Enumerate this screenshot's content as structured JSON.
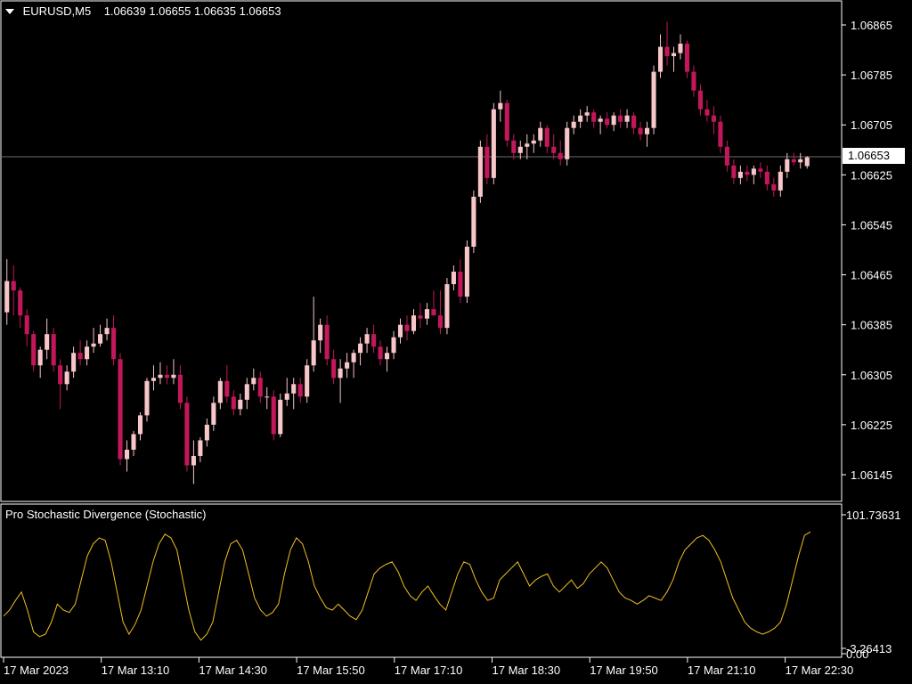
{
  "header": {
    "symbol": "EURUSD,M5",
    "open": "1.06639",
    "high": "1.06655",
    "low": "1.06635",
    "close": "1.06653"
  },
  "indicator": {
    "title": "Pro Stochastic Divergence (Stochastic)",
    "max_label": "101.73631",
    "zero_label": "0.00",
    "min_label": "-3.26413"
  },
  "price_axis": {
    "ticks": [
      "1.06865",
      "1.06785",
      "1.06705",
      "1.06625",
      "1.06545",
      "1.06465",
      "1.06385",
      "1.06305",
      "1.06225",
      "1.06145"
    ],
    "last_price": "1.06653"
  },
  "time_axis": {
    "ticks": [
      "17 Mar 2023",
      "17 Mar 13:10",
      "17 Mar 14:30",
      "17 Mar 15:50",
      "17 Mar 17:10",
      "17 Mar 18:30",
      "17 Mar 19:50",
      "17 Mar 21:10",
      "17 Mar 22:30"
    ]
  },
  "colors": {
    "background": "#000000",
    "bull_candle": "#f7c6c8",
    "bear_candle": "#c2185b",
    "indicator_line": "#f0c020",
    "axis": "#ffffff",
    "price_line": "#8a8a8a"
  },
  "chart_data": [
    {
      "type": "candlestick",
      "title": "EURUSD,M5",
      "x_range": [
        "17 Mar 2023",
        "17 Mar 22:30"
      ],
      "ylim": [
        1.06125,
        1.06885
      ],
      "ohlc": [
        [
          1.06405,
          1.0649,
          1.06385,
          1.06455
        ],
        [
          1.06455,
          1.0648,
          1.064,
          1.0644
        ],
        [
          1.0644,
          1.06445,
          1.0638,
          1.064
        ],
        [
          1.064,
          1.0641,
          1.0635,
          1.0637
        ],
        [
          1.0637,
          1.06375,
          1.0631,
          1.0632
        ],
        [
          1.0632,
          1.0635,
          1.063,
          1.06345
        ],
        [
          1.06345,
          1.06395,
          1.0633,
          1.0637
        ],
        [
          1.0637,
          1.0638,
          1.0631,
          1.0632
        ],
        [
          1.0632,
          1.0633,
          1.0625,
          1.0629
        ],
        [
          1.0629,
          1.0632,
          1.0628,
          1.0631
        ],
        [
          1.0631,
          1.0635,
          1.063,
          1.0634
        ],
        [
          1.0634,
          1.0636,
          1.0632,
          1.0633
        ],
        [
          1.0633,
          1.0636,
          1.0632,
          1.0635
        ],
        [
          1.0635,
          1.0638,
          1.0634,
          1.06355
        ],
        [
          1.06355,
          1.06385,
          1.0635,
          1.0637
        ],
        [
          1.0637,
          1.06395,
          1.0636,
          1.0638
        ],
        [
          1.0638,
          1.064,
          1.0632,
          1.0633
        ],
        [
          1.0633,
          1.0634,
          1.0616,
          1.0617
        ],
        [
          1.0617,
          1.062,
          1.0615,
          1.06185
        ],
        [
          1.06185,
          1.06215,
          1.06175,
          1.0621
        ],
        [
          1.0621,
          1.06245,
          1.062,
          1.0624
        ],
        [
          1.0624,
          1.063,
          1.0623,
          1.06295
        ],
        [
          1.06295,
          1.0632,
          1.0628,
          1.063
        ],
        [
          1.063,
          1.06325,
          1.0629,
          1.06305
        ],
        [
          1.06305,
          1.0632,
          1.0629,
          1.063
        ],
        [
          1.063,
          1.0633,
          1.0629,
          1.06305
        ],
        [
          1.06305,
          1.0632,
          1.0625,
          1.0626
        ],
        [
          1.0626,
          1.0627,
          1.0615,
          1.0616
        ],
        [
          1.0616,
          1.062,
          1.0613,
          1.06175
        ],
        [
          1.06175,
          1.06205,
          1.06165,
          1.062
        ],
        [
          1.062,
          1.06235,
          1.0619,
          1.06225
        ],
        [
          1.06225,
          1.0627,
          1.06215,
          1.0626
        ],
        [
          1.0626,
          1.063,
          1.0625,
          1.06295
        ],
        [
          1.06295,
          1.0632,
          1.0626,
          1.0627
        ],
        [
          1.0627,
          1.0628,
          1.0624,
          1.0625
        ],
        [
          1.0625,
          1.06275,
          1.0624,
          1.06265
        ],
        [
          1.06265,
          1.063,
          1.0625,
          1.0629
        ],
        [
          1.0629,
          1.06315,
          1.0628,
          1.063
        ],
        [
          1.063,
          1.0631,
          1.0626,
          1.0627
        ],
        [
          1.0627,
          1.06285,
          1.0625,
          1.0627
        ],
        [
          1.0627,
          1.0628,
          1.062,
          1.0621
        ],
        [
          1.0621,
          1.06275,
          1.06205,
          1.06265
        ],
        [
          1.06265,
          1.063,
          1.06255,
          1.06275
        ],
        [
          1.06275,
          1.063,
          1.0625,
          1.0629
        ],
        [
          1.0629,
          1.063,
          1.0626,
          1.0627
        ],
        [
          1.0627,
          1.0633,
          1.0626,
          1.0632
        ],
        [
          1.0632,
          1.0643,
          1.0631,
          1.0636
        ],
        [
          1.0636,
          1.06395,
          1.0634,
          1.06385
        ],
        [
          1.06385,
          1.064,
          1.0632,
          1.0633
        ],
        [
          1.0633,
          1.06345,
          1.0629,
          1.063
        ],
        [
          1.063,
          1.0633,
          1.0626,
          1.06315
        ],
        [
          1.06315,
          1.0634,
          1.063,
          1.06325
        ],
        [
          1.06325,
          1.06345,
          1.063,
          1.0634
        ],
        [
          1.0634,
          1.06365,
          1.0632,
          1.06355
        ],
        [
          1.06355,
          1.0638,
          1.0634,
          1.0637
        ],
        [
          1.0637,
          1.06385,
          1.0634,
          1.0635
        ],
        [
          1.0635,
          1.0636,
          1.0632,
          1.0633
        ],
        [
          1.0633,
          1.0635,
          1.0631,
          1.0634
        ],
        [
          1.0634,
          1.06375,
          1.0633,
          1.06365
        ],
        [
          1.06365,
          1.06395,
          1.06355,
          1.06385
        ],
        [
          1.06385,
          1.064,
          1.0636,
          1.06375
        ],
        [
          1.06375,
          1.0641,
          1.0637,
          1.064
        ],
        [
          1.064,
          1.0642,
          1.0638,
          1.06395
        ],
        [
          1.06395,
          1.0642,
          1.06385,
          1.0641
        ],
        [
          1.0641,
          1.0644,
          1.064,
          1.064
        ],
        [
          1.064,
          1.0644,
          1.0637,
          1.0638
        ],
        [
          1.0638,
          1.0646,
          1.0637,
          1.0645
        ],
        [
          1.0645,
          1.0648,
          1.0644,
          1.0647
        ],
        [
          1.0647,
          1.0649,
          1.0642,
          1.0643
        ],
        [
          1.0643,
          1.0652,
          1.0642,
          1.0651
        ],
        [
          1.0651,
          1.066,
          1.065,
          1.0659
        ],
        [
          1.0659,
          1.0668,
          1.0658,
          1.0667
        ],
        [
          1.0667,
          1.0669,
          1.0661,
          1.0662
        ],
        [
          1.0662,
          1.0674,
          1.0661,
          1.0673
        ],
        [
          1.0673,
          1.0676,
          1.0671,
          1.0674
        ],
        [
          1.0674,
          1.06745,
          1.0667,
          1.0668
        ],
        [
          1.0668,
          1.0669,
          1.0665,
          1.0666
        ],
        [
          1.0666,
          1.0668,
          1.0665,
          1.0667
        ],
        [
          1.0667,
          1.0669,
          1.0665,
          1.06675
        ],
        [
          1.06675,
          1.0669,
          1.0666,
          1.0668
        ],
        [
          1.0668,
          1.0671,
          1.0667,
          1.067
        ],
        [
          1.067,
          1.06705,
          1.0666,
          1.0667
        ],
        [
          1.0667,
          1.0669,
          1.0665,
          1.0666
        ],
        [
          1.0666,
          1.0668,
          1.0664,
          1.0665
        ],
        [
          1.0665,
          1.0671,
          1.0664,
          1.067
        ],
        [
          1.067,
          1.0672,
          1.0669,
          1.0671
        ],
        [
          1.0671,
          1.0673,
          1.067,
          1.0672
        ],
        [
          1.0672,
          1.06735,
          1.0671,
          1.06725
        ],
        [
          1.06725,
          1.0673,
          1.067,
          1.0671
        ],
        [
          1.0671,
          1.0672,
          1.0669,
          1.06715
        ],
        [
          1.06715,
          1.06725,
          1.067,
          1.06705
        ],
        [
          1.06705,
          1.06725,
          1.06695,
          1.0672
        ],
        [
          1.0672,
          1.0673,
          1.067,
          1.0671
        ],
        [
          1.0671,
          1.0673,
          1.067,
          1.0672
        ],
        [
          1.0672,
          1.06725,
          1.0669,
          1.067
        ],
        [
          1.067,
          1.0671,
          1.0668,
          1.0669
        ],
        [
          1.0669,
          1.0671,
          1.0667,
          1.067
        ],
        [
          1.067,
          1.068,
          1.0669,
          1.0679
        ],
        [
          1.0679,
          1.0685,
          1.0678,
          1.0683
        ],
        [
          1.0683,
          1.0687,
          1.068,
          1.06815
        ],
        [
          1.06815,
          1.0683,
          1.0679,
          1.0682
        ],
        [
          1.0682,
          1.0685,
          1.0681,
          1.06835
        ],
        [
          1.06835,
          1.0684,
          1.0678,
          1.0679
        ],
        [
          1.0679,
          1.068,
          1.0675,
          1.0676
        ],
        [
          1.0676,
          1.0677,
          1.0672,
          1.0673
        ],
        [
          1.0673,
          1.06745,
          1.0671,
          1.0672
        ],
        [
          1.0672,
          1.06735,
          1.0669,
          1.0671
        ],
        [
          1.0671,
          1.0672,
          1.0666,
          1.0667
        ],
        [
          1.0667,
          1.0668,
          1.0663,
          1.0664
        ],
        [
          1.0664,
          1.0665,
          1.0661,
          1.0662
        ],
        [
          1.0662,
          1.0664,
          1.0661,
          1.0663
        ],
        [
          1.0663,
          1.0664,
          1.06615,
          1.06625
        ],
        [
          1.06625,
          1.0664,
          1.0661,
          1.06635
        ],
        [
          1.06635,
          1.06645,
          1.0662,
          1.0663
        ],
        [
          1.0663,
          1.0664,
          1.066,
          1.0661
        ],
        [
          1.0661,
          1.0662,
          1.0659,
          1.066
        ],
        [
          1.066,
          1.0664,
          1.0659,
          1.0663
        ],
        [
          1.0663,
          1.0666,
          1.0662,
          1.0665
        ],
        [
          1.0665,
          1.0666,
          1.0664,
          1.06645
        ],
        [
          1.06645,
          1.0666,
          1.06635,
          1.0665
        ],
        [
          1.06639,
          1.06655,
          1.06635,
          1.06653
        ]
      ]
    },
    {
      "type": "line",
      "title": "Pro Stochastic Divergence (Stochastic)",
      "ylim": [
        -3.26413,
        101.73631
      ],
      "series": [
        {
          "name": "Stochastic",
          "values": [
            25,
            30,
            38,
            45,
            30,
            12,
            8,
            10,
            20,
            35,
            30,
            28,
            35,
            55,
            75,
            85,
            90,
            88,
            70,
            45,
            20,
            10,
            18,
            30,
            50,
            70,
            85,
            93,
            90,
            80,
            55,
            30,
            12,
            5,
            10,
            20,
            45,
            70,
            85,
            88,
            80,
            60,
            40,
            30,
            25,
            28,
            35,
            60,
            80,
            90,
            85,
            70,
            50,
            40,
            32,
            30,
            35,
            30,
            25,
            22,
            30,
            45,
            60,
            65,
            68,
            70,
            62,
            50,
            42,
            38,
            45,
            50,
            42,
            35,
            30,
            45,
            60,
            70,
            68,
            55,
            45,
            38,
            40,
            55,
            60,
            65,
            70,
            60,
            50,
            55,
            58,
            60,
            50,
            45,
            50,
            55,
            48,
            52,
            60,
            65,
            70,
            65,
            55,
            45,
            40,
            38,
            35,
            38,
            42,
            40,
            38,
            45,
            55,
            70,
            80,
            85,
            90,
            92,
            88,
            80,
            70,
            55,
            40,
            30,
            20,
            15,
            12,
            10,
            12,
            15,
            20,
            35,
            55,
            75,
            92,
            95
          ]
        }
      ]
    }
  ]
}
